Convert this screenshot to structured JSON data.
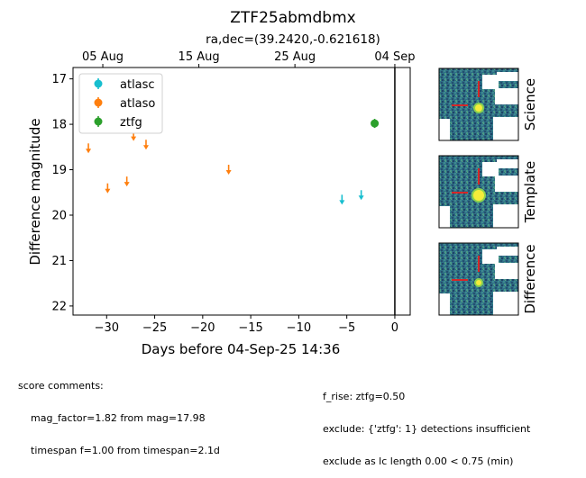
{
  "chart_data": {
    "type": "scatter",
    "title": "ZTF25abmdbmx",
    "subtitle": "ra,dec=(39.2420,-0.621618)",
    "xlabel": "Days before 04-Sep-25 14:36",
    "ylabel": "Difference magnitude",
    "xlim": [
      -33.5,
      1.6
    ],
    "ylim": [
      22.2,
      16.75
    ],
    "y_inverted": true,
    "x_ticks": [
      -30,
      -25,
      -20,
      -15,
      -10,
      -5,
      0
    ],
    "x_tick_labels": [
      "−30",
      "−25",
      "−20",
      "−15",
      "−10",
      "−5",
      "0"
    ],
    "y_ticks": [
      17,
      18,
      19,
      20,
      21,
      22
    ],
    "y_tick_labels": [
      "17",
      "18",
      "19",
      "20",
      "21",
      "22"
    ],
    "top_axis_ticks": [
      {
        "x": -30.4,
        "label": "05 Aug"
      },
      {
        "x": -20.4,
        "label": "15 Aug"
      },
      {
        "x": -10.4,
        "label": "25 Aug"
      },
      {
        "x": 0,
        "label": "04 Sep"
      }
    ],
    "vline_x": 0,
    "legend_position": "top-left",
    "series": [
      {
        "name": "atlasc",
        "color": "#17becf",
        "detections": [],
        "upper_limits": [
          {
            "x": -5.5,
            "y": 19.63
          },
          {
            "x": -3.5,
            "y": 19.53
          }
        ]
      },
      {
        "name": "atlaso",
        "color": "#ff7f0e",
        "detections": [],
        "upper_limits": [
          {
            "x": -31.9,
            "y": 18.5
          },
          {
            "x": -29.9,
            "y": 19.38
          },
          {
            "x": -27.9,
            "y": 19.23
          },
          {
            "x": -27.2,
            "y": 18.23
          },
          {
            "x": -25.9,
            "y": 18.42
          },
          {
            "x": -17.3,
            "y": 18.97
          }
        ]
      },
      {
        "name": "ztfg",
        "color": "#2ca02c",
        "detections": [
          {
            "x": -2.1,
            "y": 17.98,
            "yerr": 0.1
          }
        ],
        "upper_limits": []
      }
    ],
    "cutouts": [
      {
        "label": "Science"
      },
      {
        "label": "Template"
      },
      {
        "label": "Difference"
      }
    ]
  },
  "comments_left": {
    "header": "score comments:",
    "lines": [
      "mag_factor=1.82 from mag=17.98",
      "timespan f=1.00 from timespan=2.1d"
    ]
  },
  "comments_right": {
    "lines": [
      "f_rise: ztfg=0.50",
      "exclude: {'ztfg': 1} detections insufficient",
      "exclude as lc length 0.00 < 0.75 (min)"
    ]
  }
}
